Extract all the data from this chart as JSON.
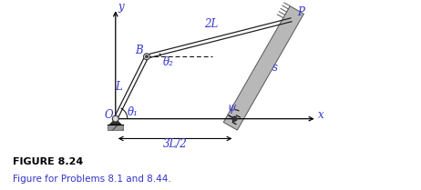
{
  "bg_color": "#ffffff",
  "fig_label": "FIGURE 8.24",
  "fig_caption": "Figure for Problems 8.1 and 8.44.",
  "link1_label": "L",
  "link2_label": "2L",
  "theta1_label": "θ₁",
  "theta2_label": "θ₂",
  "psi_label": "ψ",
  "s_label": "s",
  "x_label": "x",
  "y_label": "y",
  "B_label": "B",
  "O_label": "O",
  "P_label": "P",
  "dim_label": "3L/2",
  "text_color": "#3333cc",
  "line_color": "#000000",
  "O": [
    0.0,
    0.0
  ],
  "B": [
    0.55,
    1.1
  ],
  "P": [
    3.1,
    1.75
  ],
  "slider_pt": [
    2.1,
    0.0
  ],
  "xlim": [
    -0.45,
    3.8
  ],
  "ylim": [
    -0.52,
    2.1
  ]
}
